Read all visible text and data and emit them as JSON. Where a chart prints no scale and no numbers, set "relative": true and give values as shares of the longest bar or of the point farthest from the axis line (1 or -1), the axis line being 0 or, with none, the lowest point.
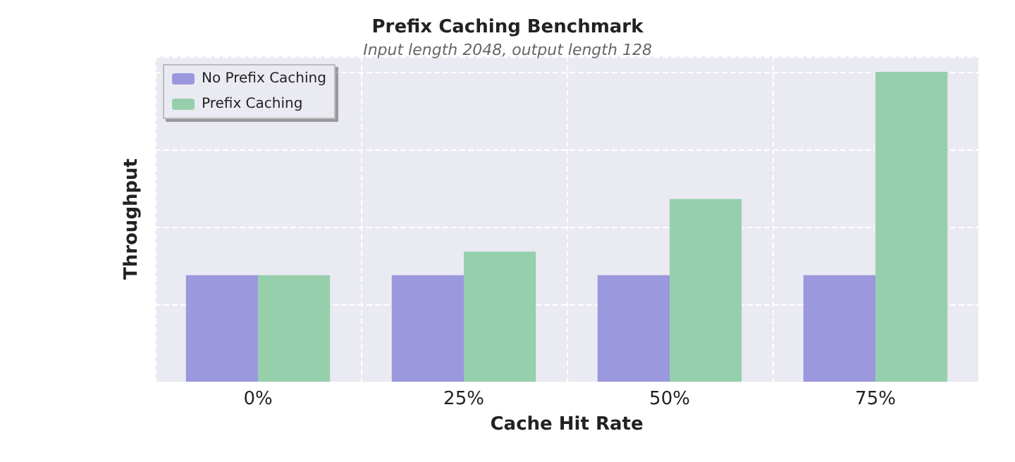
{
  "chart_data": {
    "type": "bar",
    "title": "Prefix Caching Benchmark",
    "subtitle": "Input length 2048, output length 128",
    "xlabel": "Cache Hit Rate",
    "ylabel": "Throughput",
    "categories": [
      "0%",
      "25%",
      "50%",
      "75%"
    ],
    "relative": true,
    "grid": true,
    "legend": "top left",
    "series": [
      {
        "name": "No Prefix Caching",
        "color": "#9b98dd",
        "values": [
          0.344,
          0.344,
          0.344,
          0.344
        ]
      },
      {
        "name": "Prefix Caching",
        "color": "#96cfac",
        "values": [
          0.344,
          0.42,
          0.59,
          1
        ]
      }
    ]
  }
}
